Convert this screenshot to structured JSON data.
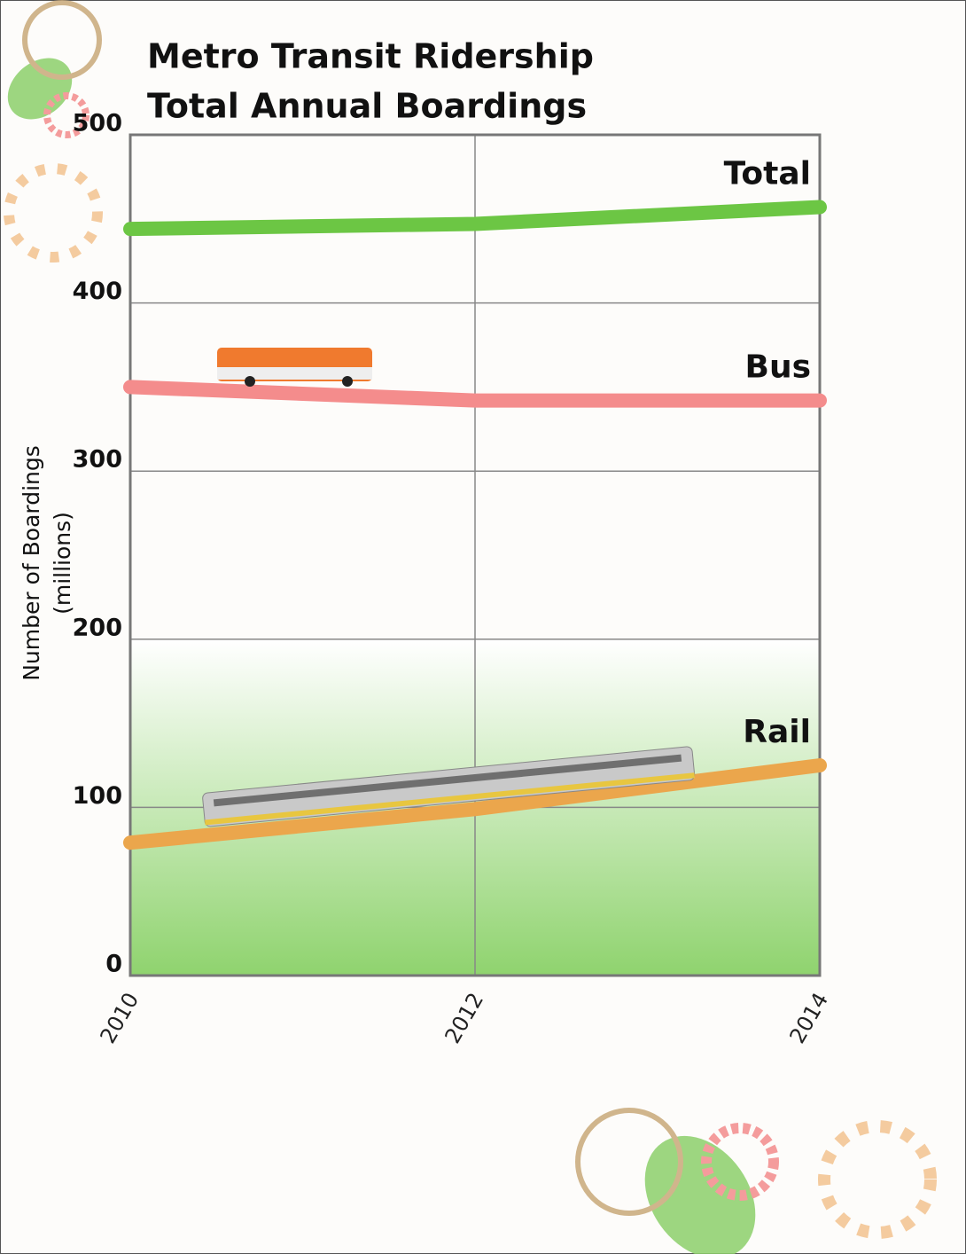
{
  "chart_data": {
    "type": "line",
    "title": "Metro Transit Ridership",
    "subtitle": "Total Annual Boardings",
    "ylabel": [
      "Number of Boardings",
      "(millions)"
    ],
    "x": [
      2010,
      2012,
      2014
    ],
    "xlim": [
      2010,
      2014
    ],
    "xticks": [
      2010,
      2012,
      2014
    ],
    "ylim": [
      0,
      500
    ],
    "yticks": [
      0,
      100,
      200,
      300,
      400,
      500
    ],
    "grid": true,
    "series": [
      {
        "name": "Total",
        "color": "#6cc644",
        "values": [
          444,
          447,
          457
        ]
      },
      {
        "name": "Bus",
        "color": "#f48c8c",
        "values": [
          350,
          342,
          342
        ]
      },
      {
        "name": "Rail",
        "color": "#eba64c",
        "values": [
          79,
          99,
          125
        ]
      }
    ]
  }
}
